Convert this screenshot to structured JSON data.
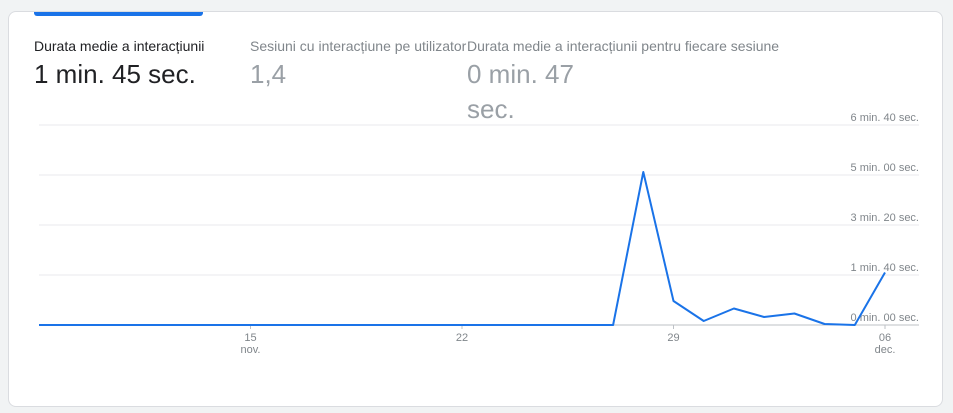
{
  "metrics": [
    {
      "label": "Durata medie a interacțiunii",
      "value": "1 min. 45 sec.",
      "active": true
    },
    {
      "label": "Sesiuni cu interacțiune pe utilizator",
      "value": "1,4",
      "active": false
    },
    {
      "label": "Durata medie a interacțiunii pentru fiecare sesiune",
      "value": "0 min. 47 sec.",
      "active": false
    }
  ],
  "colors": {
    "series": "#1a73e8",
    "grid": "#e8eaed",
    "tab_indicator": "#1a73e8"
  },
  "chart_data": {
    "type": "line",
    "x": [
      "2023-11-08",
      "2023-11-09",
      "2023-11-10",
      "2023-11-11",
      "2023-11-12",
      "2023-11-13",
      "2023-11-14",
      "2023-11-15",
      "2023-11-16",
      "2023-11-17",
      "2023-11-18",
      "2023-11-19",
      "2023-11-20",
      "2023-11-21",
      "2023-11-22",
      "2023-11-23",
      "2023-11-24",
      "2023-11-25",
      "2023-11-26",
      "2023-11-27",
      "2023-11-28",
      "2023-11-29",
      "2023-11-30",
      "2023-12-01",
      "2023-12-02",
      "2023-12-03",
      "2023-12-04",
      "2023-12-05",
      "2023-12-06"
    ],
    "x_display": [
      "",
      "",
      "",
      "",
      "",
      "",
      "",
      "15",
      "",
      "",
      "",
      "",
      "",
      "",
      "22",
      "",
      "",
      "",
      "",
      "",
      "",
      "29",
      "",
      "",
      "",
      "",
      "",
      "",
      "06"
    ],
    "x_sublabels": {
      "15": "nov.",
      "06": "dec."
    },
    "series": [
      {
        "values": [
          0,
          0,
          0,
          0,
          0,
          0,
          0,
          0,
          0,
          0,
          0,
          0,
          0,
          0,
          0,
          0,
          0,
          0,
          0,
          0,
          306,
          48,
          8,
          33,
          16,
          23,
          2,
          0,
          105
        ]
      }
    ],
    "y_unit": "seconds",
    "ylim": [
      0,
      400
    ],
    "y_ticks": [
      0,
      100,
      200,
      300,
      400
    ],
    "y_tick_labels": [
      "0 min. 00 sec.",
      "1 min. 40 sec.",
      "3 min. 20 sec.",
      "5 min. 00 sec.",
      "6 min. 40 sec."
    ],
    "grid": true,
    "legend": "none"
  }
}
